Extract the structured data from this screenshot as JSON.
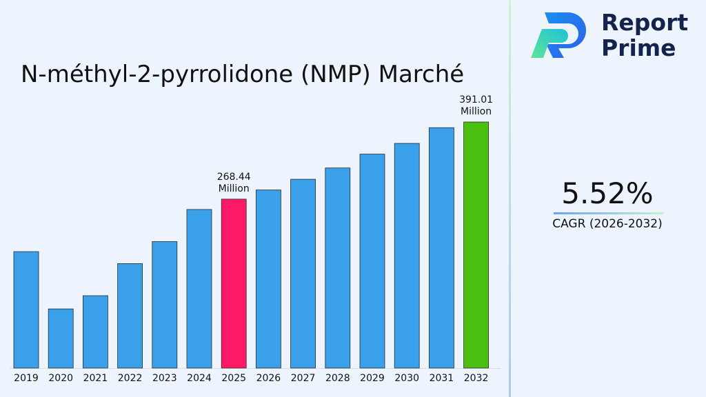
{
  "brand": {
    "name_line1": "Report",
    "name_line2": "Prime"
  },
  "kpi": {
    "value": "5.52%",
    "label": "CAGR (2026-2032)"
  },
  "colors": {
    "default_bar": "#3aa0ea",
    "highlight_2025": "#ff1a68",
    "highlight_2032": "#4cc010"
  },
  "chart_data": {
    "type": "bar",
    "title": "N-méthyl-2-pyrrolidone (NMP) Marché",
    "xlabel": "",
    "ylabel": "",
    "categories": [
      "2019",
      "2020",
      "2021",
      "2022",
      "2023",
      "2024",
      "2025",
      "2026",
      "2027",
      "2028",
      "2029",
      "2030",
      "2031",
      "2032"
    ],
    "values": [
      185,
      94,
      115,
      166,
      201,
      252,
      268.44,
      283,
      300,
      318,
      340,
      357,
      382,
      391.01
    ],
    "bar_colors": [
      "#3aa0ea",
      "#3aa0ea",
      "#3aa0ea",
      "#3aa0ea",
      "#3aa0ea",
      "#3aa0ea",
      "#ff1a68",
      "#3aa0ea",
      "#3aa0ea",
      "#3aa0ea",
      "#3aa0ea",
      "#3aa0ea",
      "#3aa0ea",
      "#4cc010"
    ],
    "annotations": [
      {
        "category": "2025",
        "value_text": "268.44",
        "unit_text": "Million"
      },
      {
        "category": "2032",
        "value_text": "391.01",
        "unit_text": "Million"
      }
    ],
    "ylim": [
      0,
      400
    ],
    "grid": false,
    "legend": "none"
  }
}
